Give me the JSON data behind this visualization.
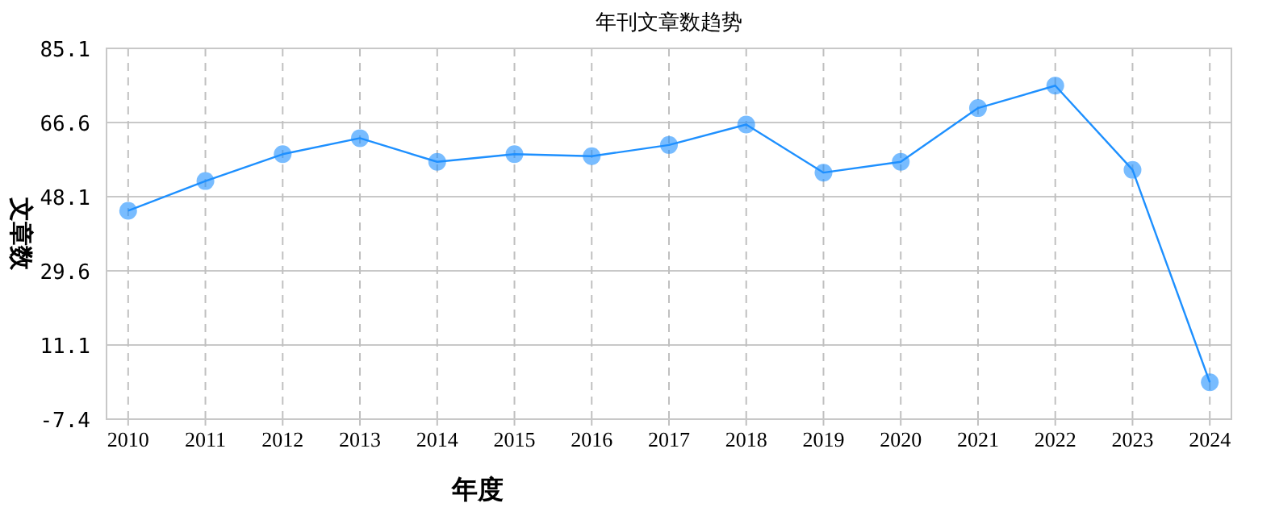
{
  "chart_data": {
    "type": "line",
    "title": "年刊文章数趋势",
    "xlabel": "年度",
    "ylabel": "文章数",
    "categories": [
      "2010",
      "2011",
      "2012",
      "2013",
      "2014",
      "2015",
      "2016",
      "2017",
      "2018",
      "2019",
      "2020",
      "2021",
      "2022",
      "2023",
      "2024"
    ],
    "series": [
      {
        "color": "#1e90ff",
        "values": [
          44.6,
          52.0,
          58.7,
          62.7,
          56.8,
          58.7,
          58.2,
          61.0,
          66.1,
          54.1,
          56.8,
          70.2,
          75.8,
          54.8,
          1.8
        ]
      }
    ],
    "ylim": [
      -7.4,
      85.1
    ],
    "yticks": [
      -7.4,
      11.1,
      29.6,
      48.1,
      66.6,
      85.1
    ],
    "grid": true,
    "marker": "circle",
    "line_style": "solid"
  }
}
